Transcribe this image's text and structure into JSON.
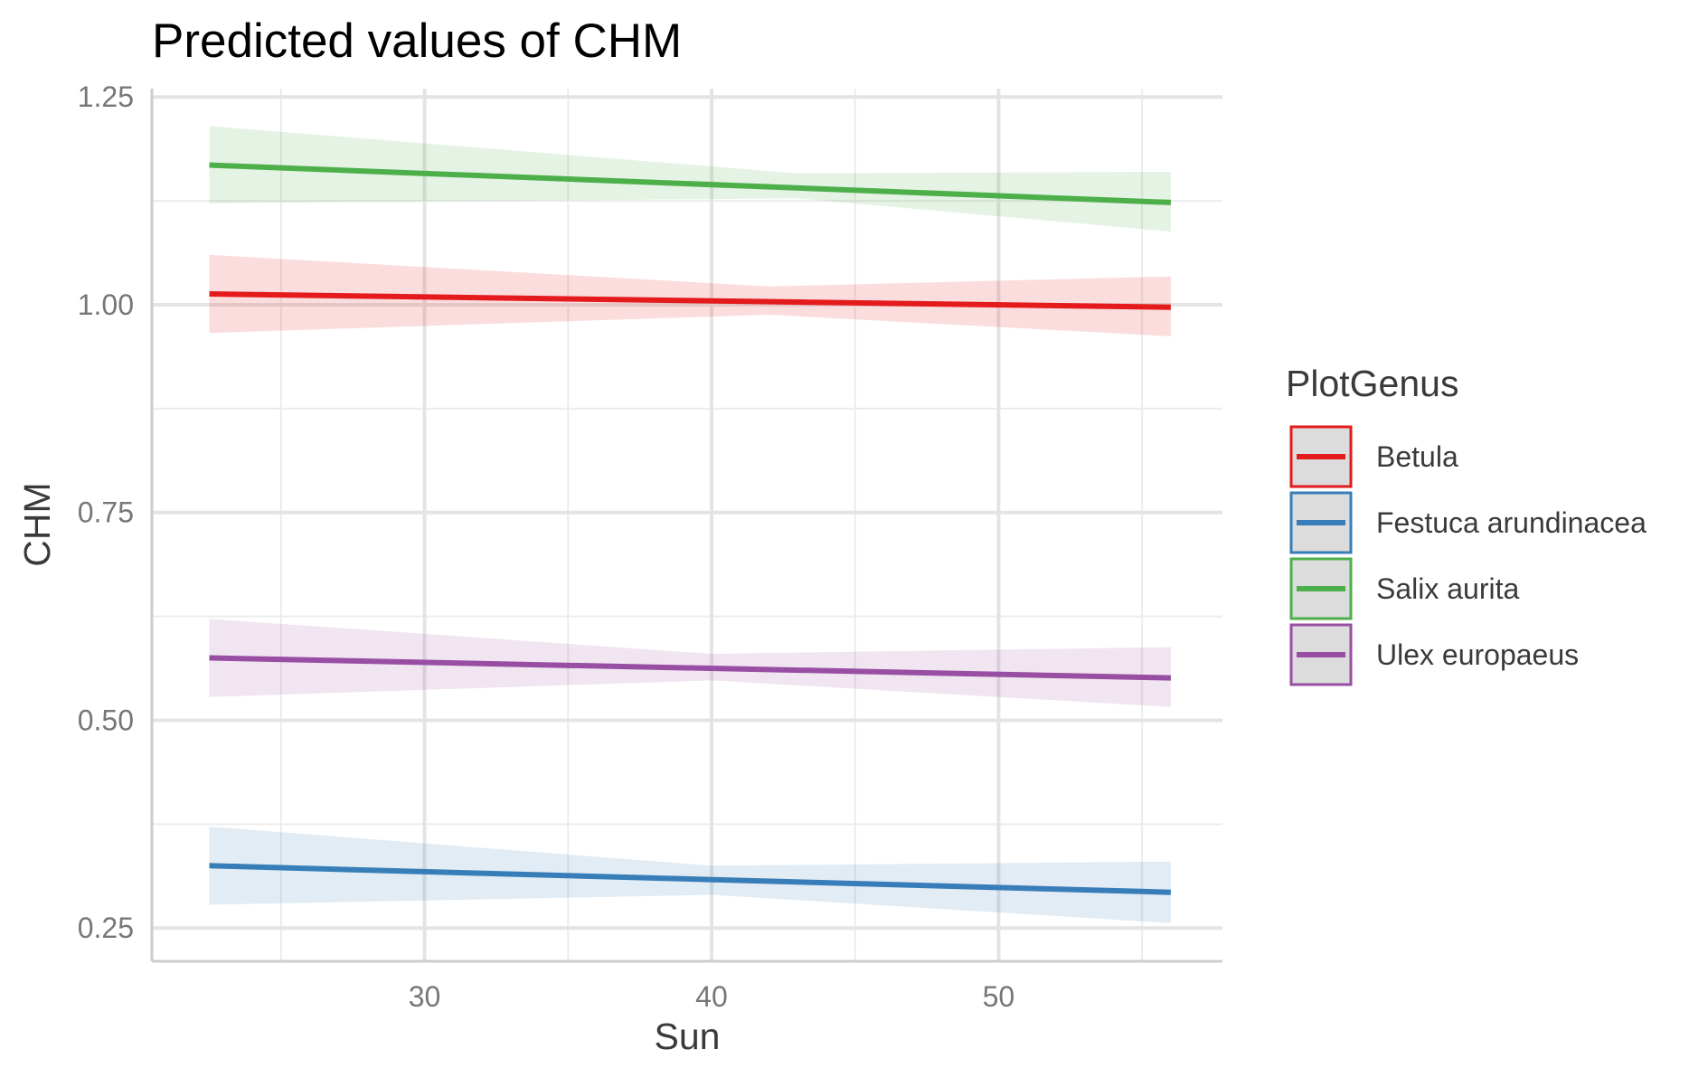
{
  "chart_data": {
    "type": "line",
    "title": "Predicted values of CHM",
    "xlabel": "Sun",
    "ylabel": "CHM",
    "xlim": [
      20.5,
      57.8
    ],
    "ylim": [
      0.21,
      1.26
    ],
    "x_ticks": [
      30,
      40,
      50
    ],
    "x_tick_labels": [
      "30",
      "40",
      "50"
    ],
    "y_ticks": [
      0.25,
      0.5,
      0.75,
      1.0,
      1.25
    ],
    "y_tick_labels": [
      "0.25",
      "0.50",
      "0.75",
      "1.00",
      "1.25"
    ],
    "x_minor_ticks": [
      25,
      35,
      45,
      55
    ],
    "y_minor_ticks": [
      0.375,
      0.625,
      0.875,
      1.125
    ],
    "grid": true,
    "legend": {
      "title": "PlotGenus",
      "position": "right"
    },
    "x": [
      22.5,
      56.0
    ],
    "series": [
      {
        "name": "Betula",
        "color": "#e41a1c",
        "values": [
          1.013,
          0.997
        ],
        "ci_lower": [
          0.966,
          0.962
        ],
        "ci_upper": [
          1.06,
          1.034
        ],
        "ci_mid_x": 42,
        "ci_mid_lower": 0.988,
        "ci_mid_upper": 1.022
      },
      {
        "name": "Festuca arundinacea",
        "color": "#377eb8",
        "values": [
          0.325,
          0.293
        ],
        "ci_lower": [
          0.278,
          0.256
        ],
        "ci_upper": [
          0.372,
          0.33
        ],
        "ci_mid_x": 40,
        "ci_mid_lower": 0.29,
        "ci_mid_upper": 0.325
      },
      {
        "name": "Salix aurita",
        "color": "#4daf4a",
        "values": [
          1.168,
          1.123
        ],
        "ci_lower": [
          1.122,
          1.088
        ],
        "ci_upper": [
          1.215,
          1.16
        ],
        "ci_mid_x": 43,
        "ci_mid_lower": 1.128,
        "ci_mid_upper": 1.158
      },
      {
        "name": "Ulex europaeus",
        "color": "#984ea3",
        "values": [
          0.575,
          0.551
        ],
        "ci_lower": [
          0.528,
          0.516
        ],
        "ci_upper": [
          0.622,
          0.588
        ],
        "ci_mid_x": 40,
        "ci_mid_lower": 0.548,
        "ci_mid_upper": 0.58
      }
    ]
  }
}
